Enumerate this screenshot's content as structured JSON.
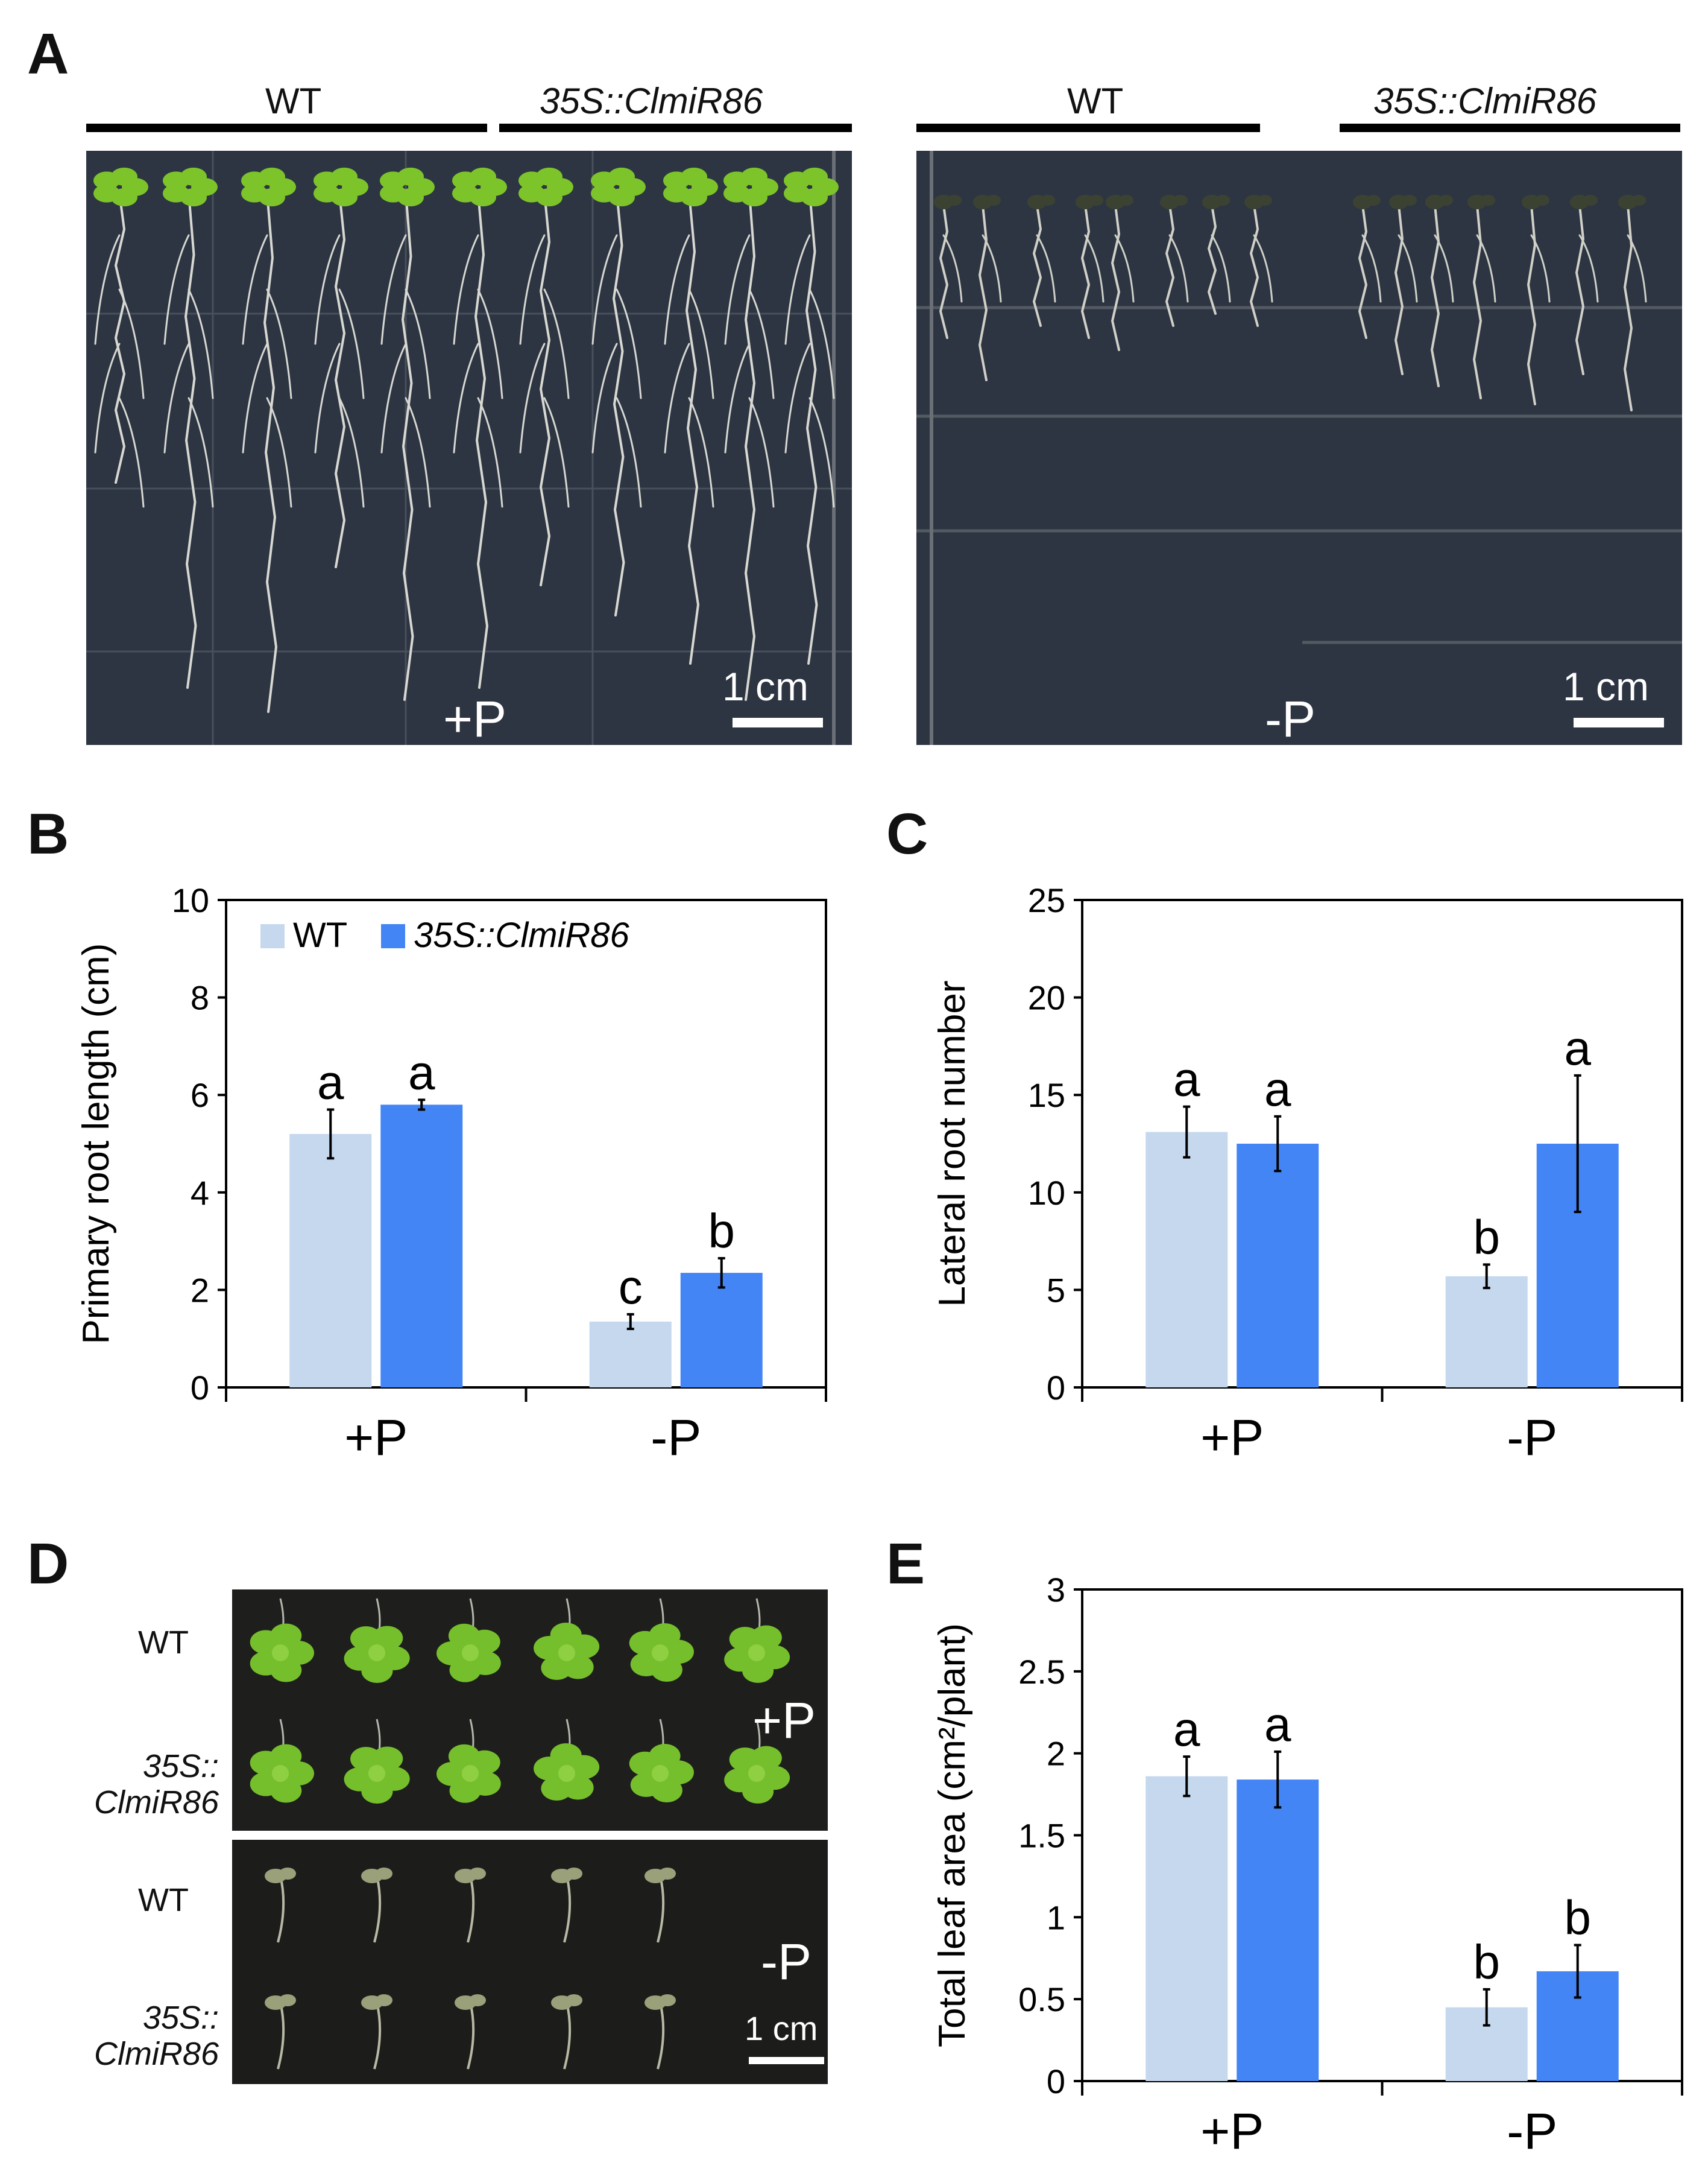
{
  "panels": {
    "a": {
      "letter": "A",
      "plates": [
        {
          "genotypes": [
            "WT",
            "35S::ClmiR86"
          ],
          "condition": "+P",
          "scale": "1 cm"
        },
        {
          "genotypes": [
            "WT",
            "35S::ClmiR86"
          ],
          "condition": "-P",
          "scale": "1 cm"
        }
      ]
    },
    "b": {
      "letter": "B"
    },
    "c": {
      "letter": "C"
    },
    "d": {
      "letter": "D",
      "rows": [
        "WT",
        "35S::\nClmiR86",
        "WT",
        "35S::\nClmiR86"
      ],
      "conditions": [
        "+P",
        "-P"
      ],
      "scale": "1 cm"
    },
    "e": {
      "letter": "E"
    }
  },
  "colors": {
    "wt": "#c5d8ee",
    "transgenic": "#4485f6",
    "plate_bg": "#2d3542",
    "leaf": "#7cc42a"
  },
  "chart_data": [
    {
      "panel": "B",
      "type": "bar",
      "categories": [
        "+P",
        "-P"
      ],
      "ylabel": "Primary root length (cm)",
      "ylim": [
        0,
        10
      ],
      "yticks": [
        "0",
        "2",
        "4",
        "6",
        "8",
        "10"
      ],
      "legend": "top-left",
      "series": [
        {
          "name": "WT",
          "values": [
            5.2,
            1.35
          ],
          "errors": [
            0.5,
            0.15
          ],
          "letters": [
            "a",
            "c"
          ]
        },
        {
          "name": "35S::ClmiR86",
          "values": [
            5.8,
            2.35
          ],
          "errors": [
            0.1,
            0.3
          ],
          "letters": [
            "a",
            "b"
          ]
        }
      ]
    },
    {
      "panel": "C",
      "type": "bar",
      "categories": [
        "+P",
        "-P"
      ],
      "ylabel": "Lateral root number",
      "ylim": [
        0,
        25
      ],
      "yticks": [
        "0",
        "5",
        "10",
        "15",
        "20",
        "25"
      ],
      "series": [
        {
          "name": "WT",
          "values": [
            13.1,
            5.7
          ],
          "errors": [
            1.3,
            0.6
          ],
          "letters": [
            "a",
            "b"
          ]
        },
        {
          "name": "35S::ClmiR86",
          "values": [
            12.5,
            12.5
          ],
          "errors": [
            1.4,
            3.5
          ],
          "letters": [
            "a",
            "a"
          ]
        }
      ]
    },
    {
      "panel": "E",
      "type": "bar",
      "categories": [
        "+P",
        "-P"
      ],
      "ylabel": "Total leaf area (cm²/plant)",
      "ylim": [
        0,
        3
      ],
      "yticks": [
        "0",
        "0.5",
        "1",
        "1.5",
        "2",
        "2.5",
        "3"
      ],
      "series": [
        {
          "name": "WT",
          "values": [
            1.86,
            0.45
          ],
          "errors": [
            0.12,
            0.11
          ],
          "letters": [
            "a",
            "b"
          ]
        },
        {
          "name": "35S::ClmiR86",
          "values": [
            1.84,
            0.67
          ],
          "errors": [
            0.17,
            0.16
          ],
          "letters": [
            "a",
            "b"
          ]
        }
      ]
    }
  ]
}
